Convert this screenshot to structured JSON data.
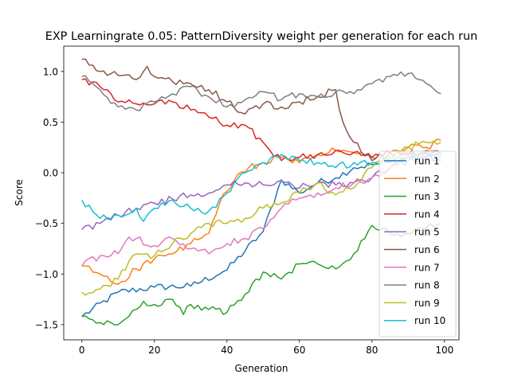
{
  "chart_data": {
    "type": "line",
    "title": "EXP Learningrate 0.05: PatternDiversity weight per generation for each run",
    "xlabel": "Generation",
    "ylabel": "Score",
    "xlim": [
      -5,
      104
    ],
    "ylim": [
      -1.65,
      1.25
    ],
    "xticks": [
      0,
      20,
      40,
      60,
      80,
      100
    ],
    "yticks": [
      -1.5,
      -1.0,
      -0.5,
      0.0,
      0.5,
      1.0
    ],
    "ytick_labels": [
      "−1.5",
      "−1.0",
      "−0.5",
      "0.0",
      "0.5",
      "1.0"
    ],
    "grid": false,
    "legend_position": "lower-right",
    "series": [
      {
        "name": "run 1",
        "color": "#1f77b4",
        "anchors": [
          [
            0,
            -1.42
          ],
          [
            10,
            -1.18
          ],
          [
            20,
            -1.13
          ],
          [
            30,
            -1.12
          ],
          [
            40,
            -0.96
          ],
          [
            50,
            -0.58
          ],
          [
            55,
            -0.07
          ],
          [
            60,
            -0.2
          ],
          [
            65,
            -0.1
          ],
          [
            70,
            -0.05
          ],
          [
            75,
            0.05
          ],
          [
            80,
            0.08
          ],
          [
            85,
            0.1
          ],
          [
            90,
            0.15
          ],
          [
            95,
            0.15
          ],
          [
            99,
            0.12
          ]
        ]
      },
      {
        "name": "run 2",
        "color": "#ff7f0e",
        "anchors": [
          [
            0,
            -0.92
          ],
          [
            5,
            -1.0
          ],
          [
            10,
            -1.1
          ],
          [
            15,
            -0.95
          ],
          [
            20,
            -0.85
          ],
          [
            25,
            -0.8
          ],
          [
            30,
            -0.7
          ],
          [
            35,
            -0.6
          ],
          [
            38,
            -0.3
          ],
          [
            42,
            -0.08
          ],
          [
            46,
            0.05
          ],
          [
            50,
            0.1
          ],
          [
            55,
            0.15
          ],
          [
            60,
            0.1
          ],
          [
            65,
            0.18
          ],
          [
            70,
            0.22
          ],
          [
            75,
            0.2
          ],
          [
            80,
            0.15
          ],
          [
            85,
            0.2
          ],
          [
            90,
            0.25
          ],
          [
            95,
            0.25
          ],
          [
            99,
            0.32
          ]
        ]
      },
      {
        "name": "run 3",
        "color": "#2ca02c",
        "anchors": [
          [
            0,
            -1.42
          ],
          [
            5,
            -1.48
          ],
          [
            10,
            -1.5
          ],
          [
            15,
            -1.35
          ],
          [
            17,
            -1.27
          ],
          [
            20,
            -1.3
          ],
          [
            25,
            -1.25
          ],
          [
            28,
            -1.4
          ],
          [
            30,
            -1.3
          ],
          [
            35,
            -1.35
          ],
          [
            40,
            -1.38
          ],
          [
            45,
            -1.2
          ],
          [
            50,
            -0.98
          ],
          [
            55,
            -1.05
          ],
          [
            60,
            -0.9
          ],
          [
            65,
            -0.9
          ],
          [
            70,
            -0.95
          ],
          [
            75,
            -0.8
          ],
          [
            80,
            -0.52
          ],
          [
            85,
            -0.6
          ],
          [
            90,
            -0.6
          ],
          [
            95,
            -0.55
          ],
          [
            99,
            -0.5
          ]
        ]
      },
      {
        "name": "run 4",
        "color": "#d62728",
        "anchors": [
          [
            0,
            0.92
          ],
          [
            5,
            0.85
          ],
          [
            10,
            0.7
          ],
          [
            15,
            0.68
          ],
          [
            20,
            0.68
          ],
          [
            25,
            0.7
          ],
          [
            30,
            0.62
          ],
          [
            35,
            0.55
          ],
          [
            40,
            0.47
          ],
          [
            45,
            0.47
          ],
          [
            50,
            0.3
          ],
          [
            55,
            0.12
          ],
          [
            60,
            0.15
          ],
          [
            65,
            0.18
          ],
          [
            70,
            0.22
          ],
          [
            75,
            0.2
          ],
          [
            80,
            0.15
          ],
          [
            85,
            0.2
          ],
          [
            90,
            0.18
          ],
          [
            95,
            0.2
          ],
          [
            99,
            0.18
          ]
        ]
      },
      {
        "name": "run 5",
        "color": "#9467bd",
        "anchors": [
          [
            0,
            -0.56
          ],
          [
            5,
            -0.5
          ],
          [
            10,
            -0.42
          ],
          [
            15,
            -0.35
          ],
          [
            20,
            -0.3
          ],
          [
            25,
            -0.26
          ],
          [
            30,
            -0.22
          ],
          [
            35,
            -0.2
          ],
          [
            40,
            -0.12
          ],
          [
            45,
            -0.1
          ],
          [
            50,
            -0.12
          ],
          [
            55,
            -0.08
          ],
          [
            60,
            -0.15
          ],
          [
            65,
            -0.1
          ],
          [
            70,
            -0.12
          ],
          [
            75,
            -0.1
          ],
          [
            80,
            -0.05
          ],
          [
            85,
            0.05
          ],
          [
            90,
            0.12
          ],
          [
            95,
            0.15
          ],
          [
            99,
            0.2
          ]
        ]
      },
      {
        "name": "run 6",
        "color": "#8c564b",
        "anchors": [
          [
            0,
            1.12
          ],
          [
            5,
            1.0
          ],
          [
            10,
            0.96
          ],
          [
            15,
            0.92
          ],
          [
            18,
            1.05
          ],
          [
            20,
            0.95
          ],
          [
            25,
            0.9
          ],
          [
            30,
            0.88
          ],
          [
            35,
            0.82
          ],
          [
            40,
            0.7
          ],
          [
            45,
            0.58
          ],
          [
            50,
            0.68
          ],
          [
            55,
            0.65
          ],
          [
            60,
            0.7
          ],
          [
            65,
            0.75
          ],
          [
            70,
            0.82
          ],
          [
            72,
            0.5
          ],
          [
            75,
            0.3
          ],
          [
            80,
            0.12
          ],
          [
            85,
            0.2
          ],
          [
            90,
            0.18
          ],
          [
            95,
            0.22
          ],
          [
            99,
            0.18
          ]
        ]
      },
      {
        "name": "run 7",
        "color": "#e377c2",
        "anchors": [
          [
            0,
            -0.92
          ],
          [
            5,
            -0.82
          ],
          [
            10,
            -0.8
          ],
          [
            12,
            -0.68
          ],
          [
            15,
            -0.65
          ],
          [
            20,
            -0.72
          ],
          [
            25,
            -0.65
          ],
          [
            30,
            -0.75
          ],
          [
            35,
            -0.8
          ],
          [
            40,
            -0.7
          ],
          [
            45,
            -0.65
          ],
          [
            50,
            -0.55
          ],
          [
            55,
            -0.35
          ],
          [
            60,
            -0.25
          ],
          [
            65,
            -0.2
          ],
          [
            70,
            -0.15
          ],
          [
            75,
            -0.1
          ],
          [
            80,
            -0.05
          ],
          [
            85,
            0.05
          ],
          [
            90,
            0.15
          ],
          [
            95,
            0.18
          ],
          [
            99,
            0.2
          ]
        ]
      },
      {
        "name": "run 8",
        "color": "#7f7f7f",
        "anchors": [
          [
            0,
            0.95
          ],
          [
            5,
            0.82
          ],
          [
            10,
            0.65
          ],
          [
            15,
            0.62
          ],
          [
            20,
            0.7
          ],
          [
            25,
            0.78
          ],
          [
            30,
            0.85
          ],
          [
            35,
            0.75
          ],
          [
            40,
            0.65
          ],
          [
            45,
            0.72
          ],
          [
            50,
            0.8
          ],
          [
            55,
            0.72
          ],
          [
            60,
            0.78
          ],
          [
            65,
            0.75
          ],
          [
            70,
            0.8
          ],
          [
            75,
            0.78
          ],
          [
            80,
            0.88
          ],
          [
            85,
            0.95
          ],
          [
            90,
            0.98
          ],
          [
            95,
            0.88
          ],
          [
            99,
            0.78
          ]
        ]
      },
      {
        "name": "run 9",
        "color": "#bcbd22",
        "anchors": [
          [
            0,
            -1.18
          ],
          [
            5,
            -1.15
          ],
          [
            10,
            -1.05
          ],
          [
            15,
            -0.8
          ],
          [
            20,
            -0.82
          ],
          [
            25,
            -0.7
          ],
          [
            30,
            -0.6
          ],
          [
            35,
            -0.5
          ],
          [
            40,
            -0.5
          ],
          [
            45,
            -0.45
          ],
          [
            50,
            -0.35
          ],
          [
            55,
            -0.3
          ],
          [
            60,
            -0.2
          ],
          [
            65,
            -0.1
          ],
          [
            70,
            -0.22
          ],
          [
            75,
            -0.15
          ],
          [
            80,
            0.05
          ],
          [
            85,
            0.15
          ],
          [
            90,
            0.25
          ],
          [
            95,
            0.3
          ],
          [
            99,
            0.3
          ]
        ]
      },
      {
        "name": "run 10",
        "color": "#17becf",
        "anchors": [
          [
            0,
            -0.27
          ],
          [
            5,
            -0.45
          ],
          [
            10,
            -0.42
          ],
          [
            15,
            -0.35
          ],
          [
            17,
            -0.48
          ],
          [
            20,
            -0.35
          ],
          [
            25,
            -0.27
          ],
          [
            30,
            -0.35
          ],
          [
            35,
            -0.38
          ],
          [
            40,
            -0.2
          ],
          [
            45,
            0.0
          ],
          [
            50,
            0.1
          ],
          [
            55,
            0.18
          ],
          [
            60,
            0.12
          ],
          [
            65,
            0.1
          ],
          [
            70,
            0.05
          ],
          [
            75,
            0.1
          ],
          [
            80,
            0.1
          ],
          [
            85,
            0.12
          ],
          [
            90,
            0.15
          ],
          [
            95,
            0.18
          ],
          [
            99,
            0.15
          ]
        ]
      }
    ]
  }
}
